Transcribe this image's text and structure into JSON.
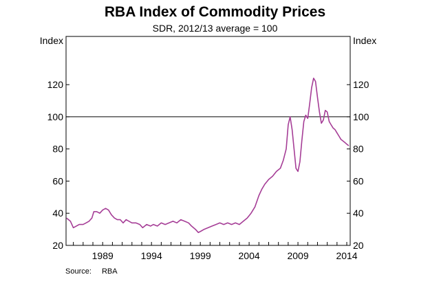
{
  "chart_data": {
    "type": "line",
    "title": "RBA Index of Commodity Prices",
    "subtitle": "SDR, 2012/13 average = 100",
    "ylabel_left": "Index",
    "ylabel_right": "Index",
    "source_label": "Source:",
    "source_value": "RBA",
    "xlim": [
      1985.25,
      2014.35
    ],
    "ylim": [
      20,
      150
    ],
    "y_ticks": [
      20,
      40,
      60,
      80,
      100,
      120
    ],
    "y_tick_labels": [
      "20",
      "40",
      "60",
      "80",
      "100",
      "120"
    ],
    "x_ticks": [
      1989,
      1994,
      1999,
      2004,
      2009,
      2014
    ],
    "x_tick_labels": [
      "1989",
      "1994",
      "1999",
      "2004",
      "2009",
      "2014"
    ],
    "reference_line": 100,
    "grid": false,
    "line_color": "#a53d96",
    "series": [
      {
        "values_x": [
          1985.3,
          1985.7,
          1986.0,
          1986.3,
          1986.6,
          1987.0,
          1987.3,
          1987.6,
          1987.9,
          1988.1,
          1988.4,
          1988.7,
          1989.0,
          1989.3,
          1989.6,
          1989.9,
          1990.2,
          1990.5,
          1990.8,
          1991.1,
          1991.4,
          1991.7,
          1992.0,
          1992.4,
          1992.8,
          1993.1,
          1993.5,
          1993.9,
          1994.2,
          1994.6,
          1995.0,
          1995.4,
          1995.8,
          1996.2,
          1996.6,
          1997.0,
          1997.4,
          1997.8,
          1998.1,
          1998.5,
          1998.8,
          1999.1,
          1999.4,
          1999.8,
          2000.2,
          2000.6,
          2001.0,
          2001.4,
          2001.8,
          2002.2,
          2002.6,
          2003.0,
          2003.4,
          2003.8,
          2004.2,
          2004.6,
          2005.0,
          2005.3,
          2005.6,
          2006.0,
          2006.4,
          2006.8,
          2007.2,
          2007.5,
          2007.8,
          2008.0,
          2008.2,
          2008.4,
          2008.6,
          2008.8,
          2009.0,
          2009.2,
          2009.4,
          2009.6,
          2009.8,
          2010.0,
          2010.2,
          2010.4,
          2010.6,
          2010.8,
          2011.0,
          2011.2,
          2011.4,
          2011.6,
          2011.8,
          2012.0,
          2012.2,
          2012.4,
          2012.6,
          2012.8,
          2013.0,
          2013.2,
          2013.4,
          2013.6,
          2013.8,
          2014.0,
          2014.2
        ],
        "values_y": [
          37,
          35,
          31,
          32,
          33,
          33,
          34,
          35,
          37,
          41,
          41,
          40,
          42,
          43,
          42,
          39,
          37,
          36,
          36,
          34,
          36,
          35,
          34,
          34,
          33,
          31,
          33,
          32,
          33,
          32,
          34,
          33,
          34,
          35,
          34,
          36,
          35,
          34,
          32,
          30,
          28,
          29,
          30,
          31,
          32,
          33,
          34,
          33,
          34,
          33,
          34,
          33,
          35,
          37,
          40,
          44,
          51,
          55,
          58,
          61,
          63,
          66,
          68,
          73,
          80,
          95,
          100,
          92,
          80,
          68,
          66,
          72,
          85,
          97,
          101,
          99,
          108,
          118,
          124,
          122,
          112,
          103,
          96,
          98,
          104,
          103,
          97,
          95,
          93,
          92,
          90,
          88,
          86,
          85,
          84,
          83,
          82
        ]
      }
    ]
  }
}
